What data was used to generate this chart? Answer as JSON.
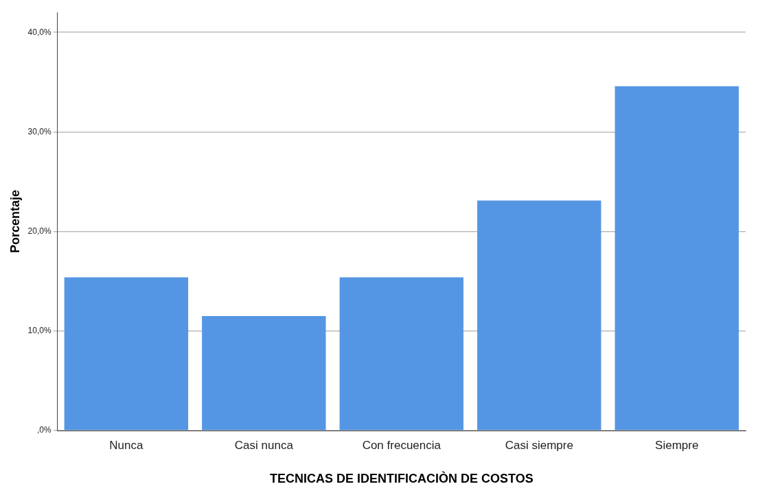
{
  "chart_data": {
    "type": "bar",
    "xlabel": "TECNICAS DE IDENTIFICACIÒN DE COSTOS",
    "ylabel": "Porcentaje",
    "categories": [
      "Nunca",
      "Casi nunca",
      "Con frecuencia",
      "Casi siempre",
      "Siempre"
    ],
    "values": [
      15.4,
      11.5,
      15.4,
      23.1,
      34.6
    ],
    "color": "#5596e4",
    "ylim": [
      0,
      42
    ],
    "yticks": [
      {
        "value": 0,
        "label": ",0%"
      },
      {
        "value": 10,
        "label": "10,0%"
      },
      {
        "value": 20,
        "label": "20,0%"
      },
      {
        "value": 30,
        "label": "30,0%"
      },
      {
        "value": 40,
        "label": "40,0%"
      }
    ],
    "grid": "y"
  }
}
